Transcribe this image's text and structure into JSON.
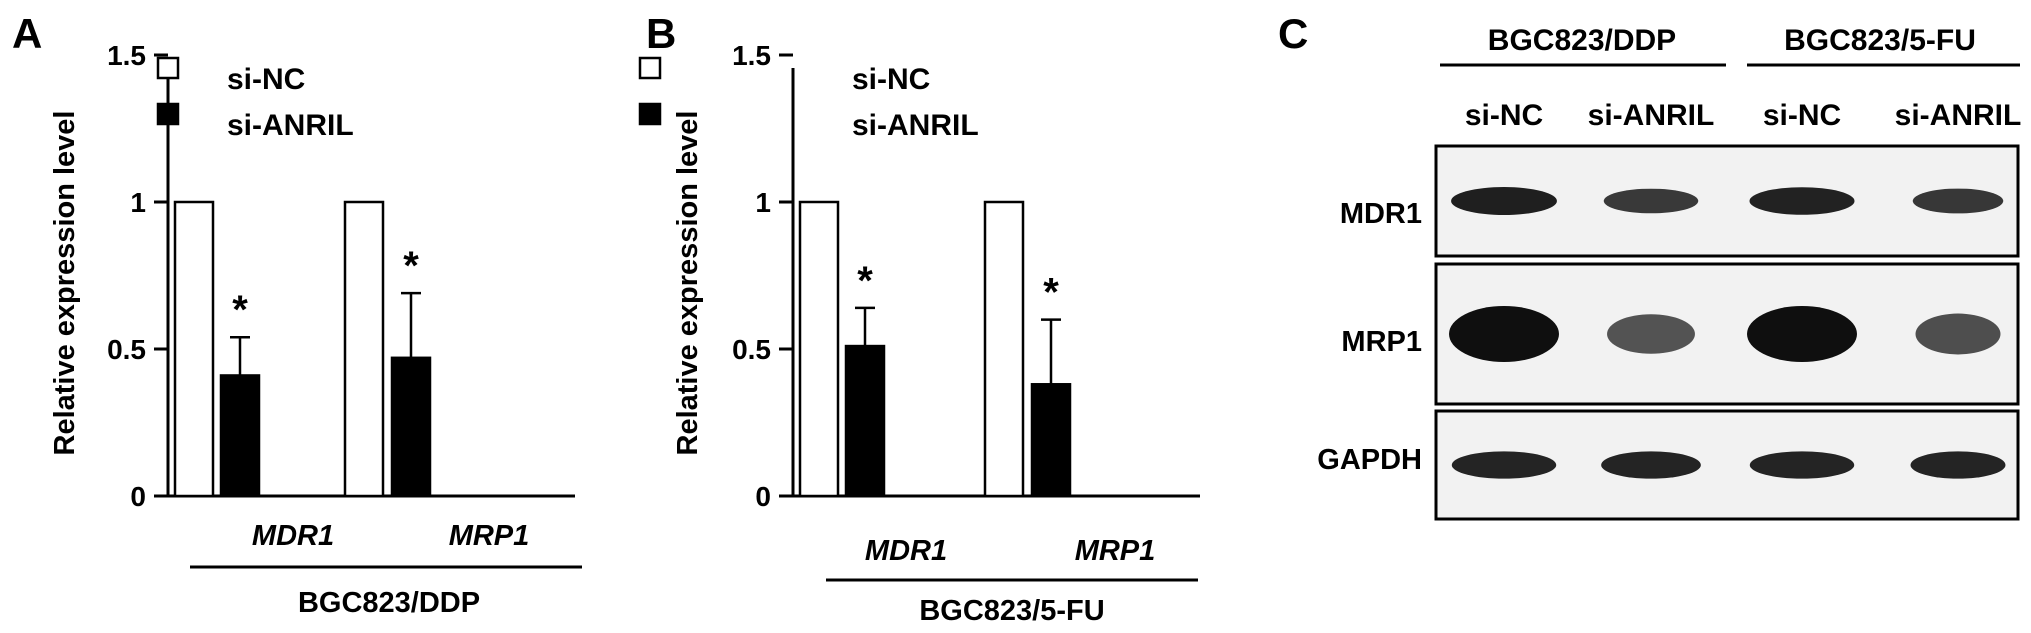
{
  "panels": {
    "A": {
      "letter": "A"
    },
    "B": {
      "letter": "B"
    },
    "C": {
      "letter": "C"
    }
  },
  "chart_data": [
    {
      "type": "bar",
      "panel": "A",
      "ylabel": "Relative expression level",
      "ylim": [
        0,
        1.5
      ],
      "yticks": [
        "0",
        "0.5",
        "1",
        "1.5"
      ],
      "categories": [
        "MDR1",
        "MRP1"
      ],
      "group_label": "BGC823/DDP",
      "legend_position": "top-left",
      "series": [
        {
          "name": "si-NC",
          "color": "#ffffff",
          "values": [
            1.0,
            1.0
          ],
          "errors": [
            0,
            0
          ]
        },
        {
          "name": "si-ANRIL",
          "color": "#000000",
          "values": [
            0.41,
            0.47
          ],
          "errors": [
            0.13,
            0.22
          ]
        }
      ],
      "annotations": [
        "*",
        "*"
      ]
    },
    {
      "type": "bar",
      "panel": "B",
      "ylabel": "Relative expression level",
      "ylim": [
        0,
        1.5
      ],
      "yticks": [
        "0",
        "0.5",
        "1",
        "1.5"
      ],
      "categories": [
        "MDR1",
        "MRP1"
      ],
      "group_label": "BGC823/5-FU",
      "legend_position": "top-left",
      "series": [
        {
          "name": "si-NC",
          "color": "#ffffff",
          "values": [
            1.0,
            1.0
          ],
          "errors": [
            0,
            0
          ]
        },
        {
          "name": "si-ANRIL",
          "color": "#000000",
          "values": [
            0.51,
            0.38
          ],
          "errors": [
            0.13,
            0.22
          ]
        }
      ],
      "annotations": [
        "*",
        "*"
      ]
    }
  ],
  "blot": {
    "groups": [
      "BGC823/DDP",
      "BGC823/5-FU"
    ],
    "lanes": [
      "si-NC",
      "si-ANRIL",
      "si-NC",
      "si-ANRIL"
    ],
    "rows": [
      {
        "label": "MDR1",
        "intensities": [
          0.85,
          0.6,
          0.82,
          0.62
        ]
      },
      {
        "label": "MRP1",
        "intensities": [
          1.0,
          0.35,
          1.0,
          0.4
        ]
      },
      {
        "label": "GAPDH",
        "intensities": [
          0.8,
          0.8,
          0.8,
          0.8
        ]
      }
    ]
  }
}
